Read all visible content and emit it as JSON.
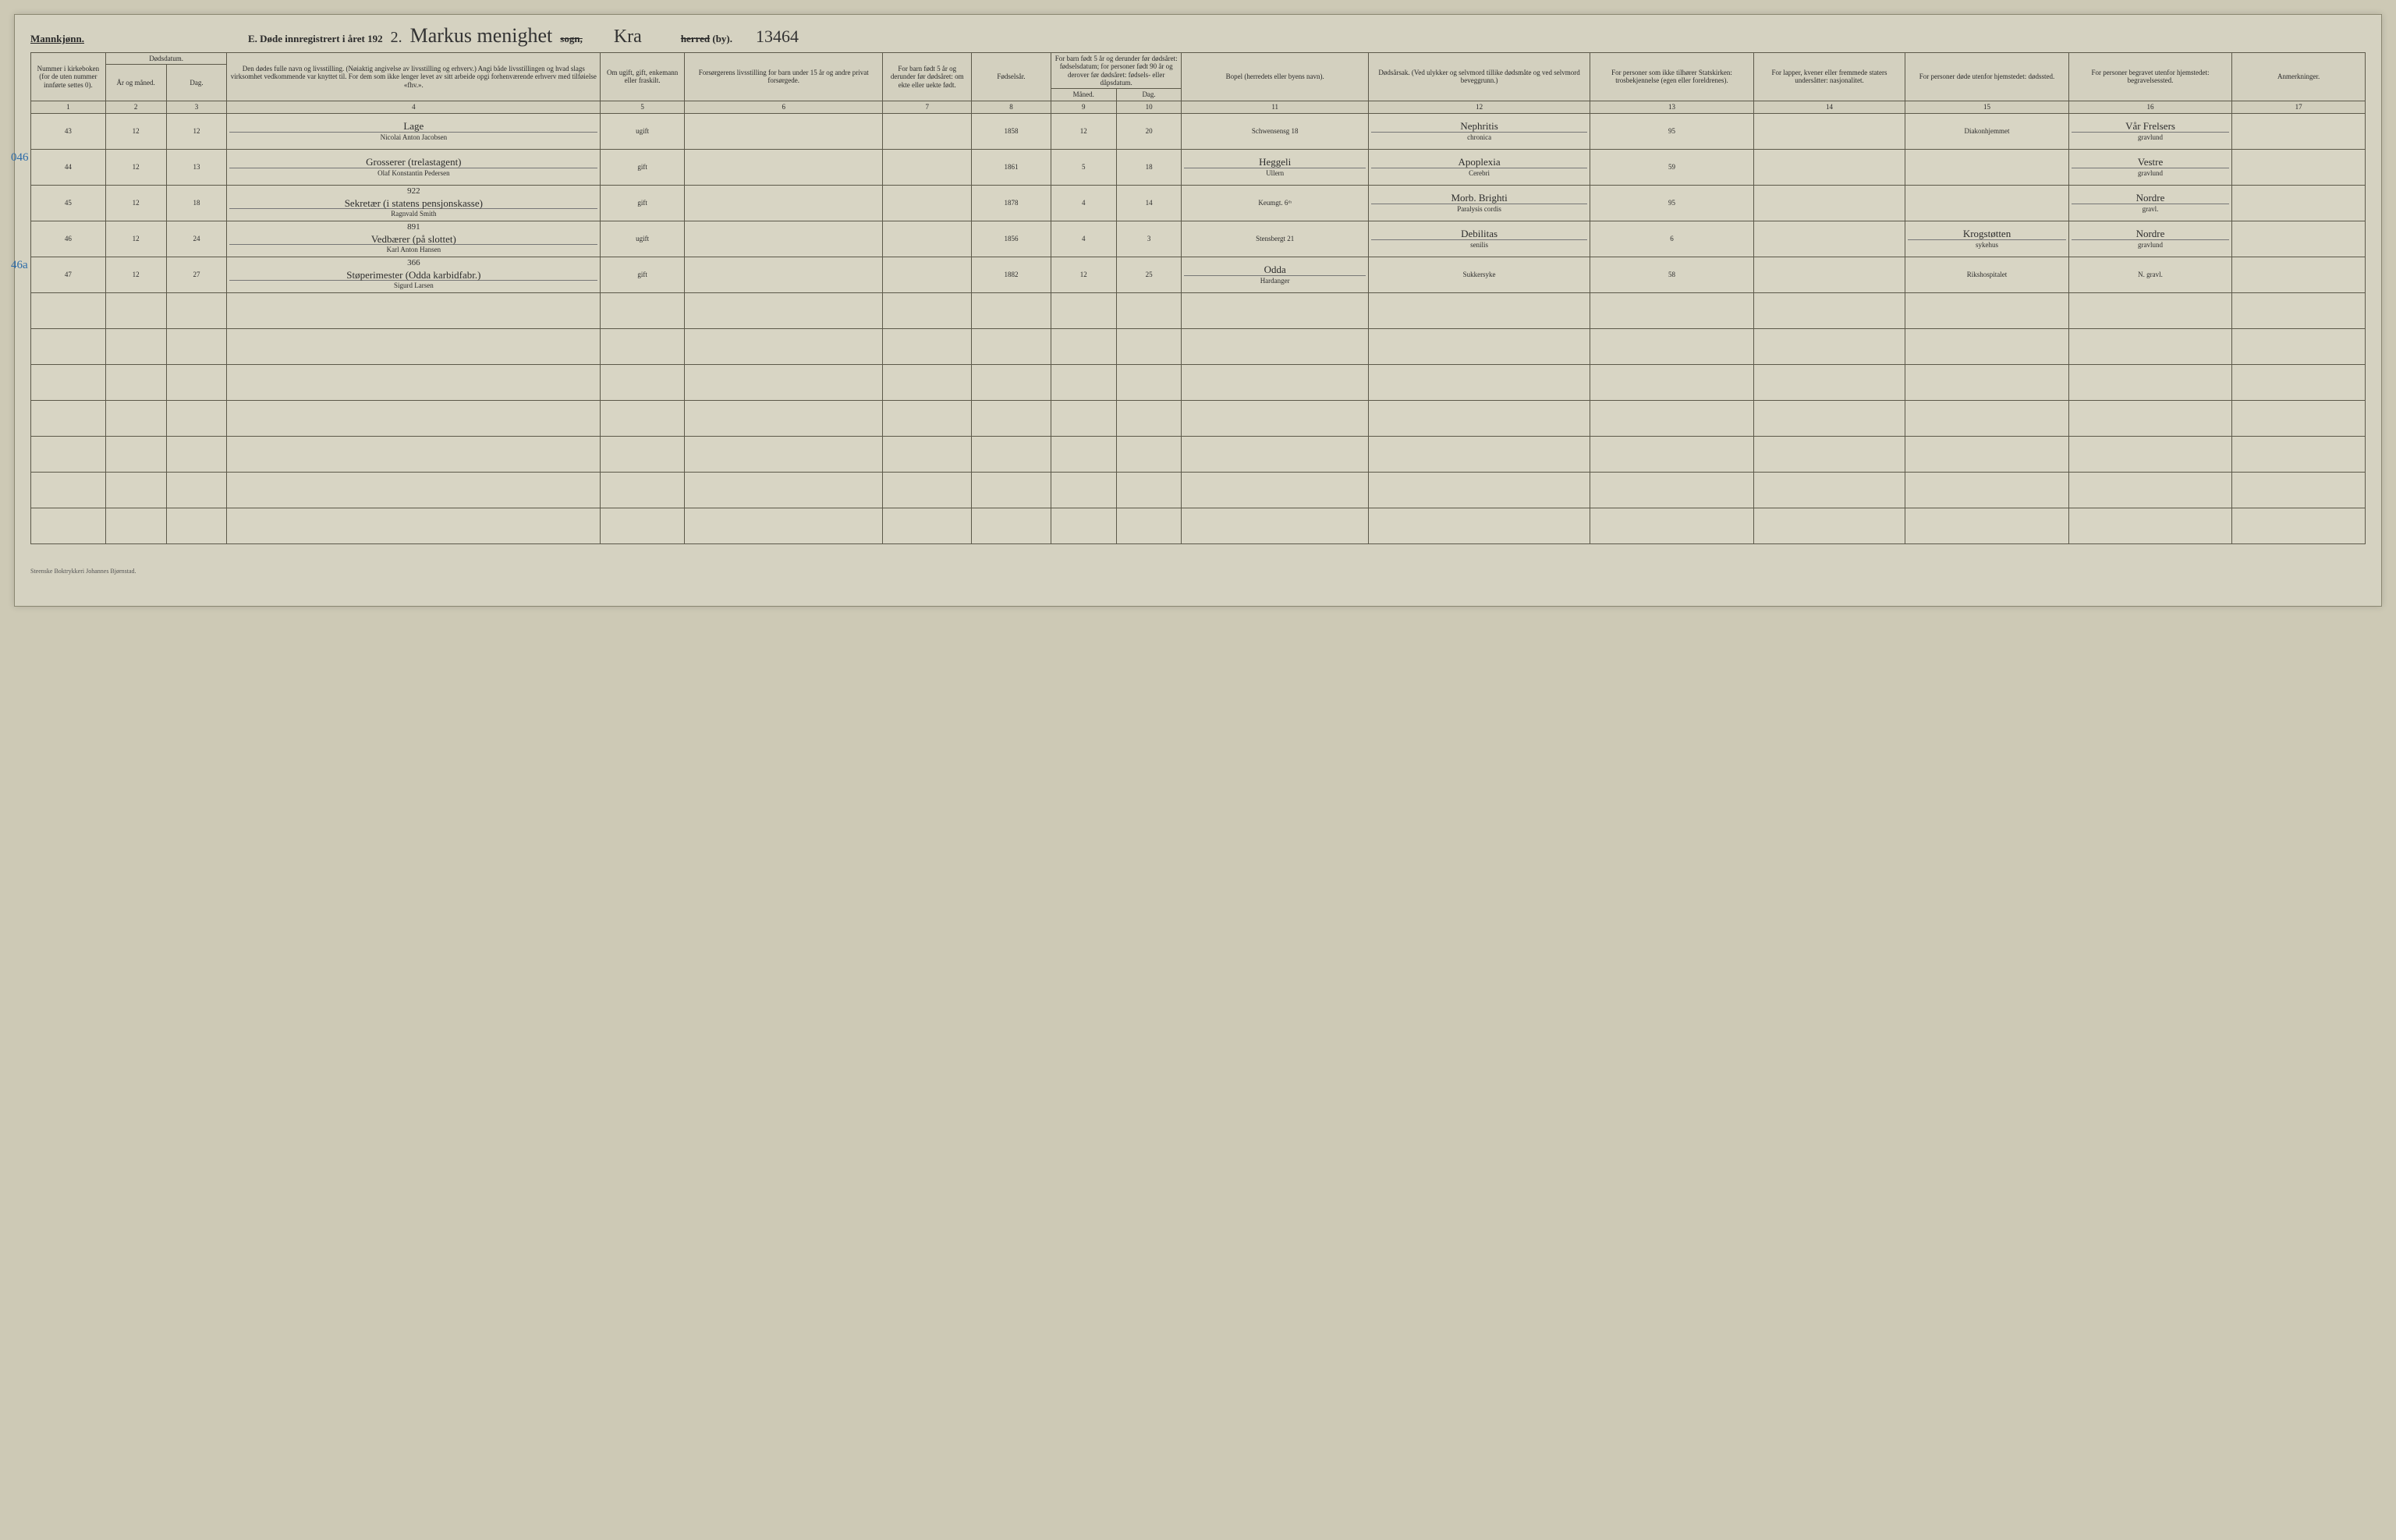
{
  "header": {
    "gender_label": "Mannkjønn.",
    "title_prefix": "E.  Døde innregistrert i året 192",
    "year_suffix": "2.",
    "parish_hw": "Markus menighet",
    "sogn_label": "sogn,",
    "city_hw": "Kra",
    "herred_label": "herred (by).",
    "page_number_hw": "13464"
  },
  "columns": {
    "c1": "Nummer i kirke­boken (for de uten nummer innførte settes 0).",
    "c2_top": "Dødsdatum.",
    "c2_ar": "År og måned.",
    "c3_dag": "Dag.",
    "c4": "Den dødes fulle navn og livsstilling. (Nøiaktig angivelse av livsstilling og erhverv.) Angi både livsstillingen og hvad slags virksomhet vedkommende var knyttet til. For dem som ikke lenger levet av sitt arbeide opgi forhenværende erhverv med tilføielse «fhv.».",
    "c5": "Om ugift, gift, enke­mann eller fraskilt.",
    "c6": "Forsørgerens livsstilling for barn under 15 år og andre privat forsørgede.",
    "c7": "For barn født 5 år og derunder før døds­året: om ekte eller uekte født.",
    "c8": "Fødsels­år.",
    "c9_top": "For barn født 5 år og der­under før dødsåret: fødselsdatum; for personer født 90 år og derover før dødsåret: fødsels- eller dåpsdatum.",
    "c9_m": "Måned.",
    "c10_d": "Dag.",
    "c11": "Bopel (herredets eller byens navn).",
    "c12": "Dødsårsak. (Ved ulykker og selv­mord tillike dødsmåte og ved selvmord beveggrunn.)",
    "c13": "For personer som ikke tilhører Statskirken: trosbekjennelse (egen eller foreldrenes).",
    "c14": "For lapper, kvener eller fremmede staters undersåtter: nasjonalitet.",
    "c15": "For personer døde utenfor hjemstedet: dødssted.",
    "c16": "For personer begravet utenfor hjemstedet: begravelsessted.",
    "c17": "Anmerkninger."
  },
  "colnums": [
    "1",
    "2",
    "3",
    "4",
    "5",
    "6",
    "7",
    "8",
    "9",
    "10",
    "11",
    "12",
    "13",
    "14",
    "15",
    "16",
    "17"
  ],
  "rows": [
    {
      "side": "",
      "n": "43",
      "ar": "12",
      "dag": "12",
      "name_top": "Lage",
      "name": "Nicolai Anton Jacobsen",
      "status": "ugift",
      "c6": "",
      "c7": "",
      "year": "1858",
      "m": "12",
      "d": "20",
      "bopel": "Schwensensg 18",
      "cause_top": "Nephritis",
      "cause": "chronica",
      "c13": "95",
      "c14": "",
      "c15": "Diakonhjemmet",
      "c16_top": "Vår Frelsers",
      "c16": "gravlund",
      "c17": ""
    },
    {
      "side": "046",
      "n": "44",
      "ar": "12",
      "dag": "13",
      "name_top": "Grosserer (trelastagent)",
      "name": "Olaf Konstantin Pedersen",
      "status": "gift",
      "c6": "",
      "c7": "",
      "year": "1861",
      "m": "5",
      "d": "18",
      "bopel_top": "Heggeli",
      "bopel": "Ullern",
      "cause_top": "Apoplexia",
      "cause": "Cerebri",
      "c13": "59",
      "c14": "",
      "c15": "",
      "c16_top": "Vestre",
      "c16": "gravlund",
      "c17": ""
    },
    {
      "side": "",
      "n": "45",
      "ar": "12",
      "dag": "18",
      "name_top": "Sekretær (i statens pensjonskasse)",
      "name_sup": "922",
      "name": "Ragnvald Smith",
      "status": "gift",
      "c6": "",
      "c7": "",
      "year": "1878",
      "m": "4",
      "d": "14",
      "bopel": "Keumgt. 6ᵗʰ",
      "cause_top": "Morb. Brighti",
      "cause": "Paralysis cordis",
      "c13": "95",
      "c14": "",
      "c15": "",
      "c16_top": "Nordre",
      "c16": "gravl.",
      "c17": ""
    },
    {
      "side": "",
      "n": "46",
      "ar": "12",
      "dag": "24",
      "name_top": "Vedbærer (på slottet)",
      "name_sup": "891",
      "name": "Karl Anton Hansen",
      "status": "ugift",
      "c6": "",
      "c7": "",
      "year": "1856",
      "m": "4",
      "d": "3",
      "bopel": "Stensbergt 21",
      "cause_top": "Debilitas",
      "cause": "senilis",
      "c13": "6",
      "c14": "",
      "c15_top": "Krogstøtten",
      "c15": "sykehus",
      "c16_top": "Nordre",
      "c16": "gravlund",
      "c17": ""
    },
    {
      "side": "46a",
      "n": "47",
      "ar": "12",
      "dag": "27",
      "name_top": "Støperimester (Odda karbidfabr.)",
      "name_sup": "366",
      "name": "Sigurd Larsen",
      "status": "gift",
      "c6": "",
      "c7": "",
      "year": "1882",
      "m": "12",
      "d": "25",
      "bopel_top": "Odda",
      "bopel": "Hardanger",
      "cause": "Sukkersyke",
      "c13": "58",
      "c14": "",
      "c15": "Rikshospitalet",
      "c16": "N. gravl.",
      "c17": ""
    }
  ],
  "blank_rows": 7,
  "footer": "Steenske Boktrykkeri Johannes Bjørnstad.",
  "colors": {
    "page_bg": "#d5d2c1",
    "body_bg": "#cdc9b5",
    "rule": "#5c594a",
    "ink": "#2d2d2d",
    "blue": "#2a6aa8"
  },
  "col_widths_pct": [
    3.2,
    2.6,
    2.6,
    16,
    3.6,
    8.5,
    3.8,
    3.4,
    2.8,
    2.8,
    8,
    9.5,
    7,
    6.5,
    7,
    7,
    5.7
  ]
}
